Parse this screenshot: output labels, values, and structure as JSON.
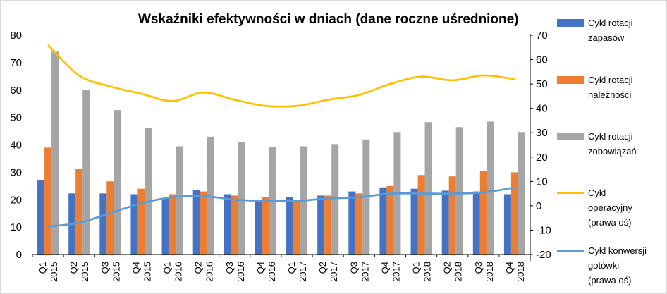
{
  "chart_data": {
    "type": "bar",
    "title": "Wskaźniki efektywności w dniach (dane roczne uśrednione)",
    "categories": [
      [
        "Q1",
        "2015"
      ],
      [
        "Q2",
        "2015"
      ],
      [
        "Q3",
        "2015"
      ],
      [
        "Q4",
        "2015"
      ],
      [
        "Q1",
        "2016"
      ],
      [
        "Q2",
        "2016"
      ],
      [
        "Q3",
        "2016"
      ],
      [
        "Q4",
        "2016"
      ],
      [
        "Q1",
        "2017"
      ],
      [
        "Q2",
        "2017"
      ],
      [
        "Q3",
        "2017"
      ],
      [
        "Q4",
        "2017"
      ],
      [
        "Q1",
        "2018"
      ],
      [
        "Q2",
        "2018"
      ],
      [
        "Q3",
        "2018"
      ],
      [
        "Q4",
        "2018"
      ]
    ],
    "ylim_left": [
      0,
      80
    ],
    "yticks_left": [
      "0",
      "10",
      "20",
      "30",
      "40",
      "50",
      "60",
      "70",
      "80"
    ],
    "ylim_right": [
      -20,
      70
    ],
    "yticks_right": [
      "-20",
      "-10",
      "0",
      "10",
      "20",
      "30",
      "40",
      "50",
      "60",
      "70"
    ],
    "grid": false,
    "legend_position": "right",
    "series": [
      {
        "name": "Cykl rotacji zapasów",
        "label_lines": [
          "Cykl rotacji",
          "zapasów"
        ],
        "kind": "bar",
        "axis": "left",
        "color": "#4472c4",
        "values": [
          27,
          22.3,
          22.3,
          22,
          20.5,
          23.5,
          22,
          19.5,
          21,
          21.5,
          23,
          24.5,
          24,
          23.3,
          23,
          22
        ]
      },
      {
        "name": "Cykl rotacji należności",
        "label_lines": [
          "Cykl rotacji",
          "należności"
        ],
        "kind": "bar",
        "axis": "left",
        "color": "#ed7d31",
        "values": [
          39,
          31.2,
          26.7,
          24,
          22,
          23,
          21.5,
          21,
          20,
          21.5,
          22.3,
          25,
          29,
          28.5,
          30.5,
          30
        ]
      },
      {
        "name": "Cykl rotacji zobowiązań",
        "label_lines": [
          "Cykl rotacji",
          "zobowiązań"
        ],
        "kind": "bar",
        "axis": "left",
        "color": "#a5a5a5",
        "values": [
          74,
          60.2,
          52.7,
          46.2,
          39.5,
          43,
          41,
          39.3,
          39.5,
          40.3,
          42,
          44.7,
          48.3,
          46.5,
          48.5,
          44.7
        ]
      },
      {
        "name": "Cykl operacyjny (prawa oś)",
        "label_lines": [
          "Cykl",
          "operacyjny",
          "(prawa oś)"
        ],
        "kind": "line",
        "axis": "right",
        "color": "#ffc000",
        "values": [
          66,
          53.5,
          49,
          46,
          43,
          46.5,
          43.5,
          41,
          41,
          43.5,
          45.5,
          50,
          53,
          51.5,
          53.5,
          52
        ]
      },
      {
        "name": "Cykl konwersji gotówki (prawa oś)",
        "label_lines": [
          "Cykl konwersji",
          "gotówki",
          "(prawa oś)"
        ],
        "kind": "line",
        "axis": "right",
        "color": "#5b9bd5",
        "values": [
          -8.5,
          -7,
          -3,
          1,
          3.5,
          4,
          2.5,
          2,
          2,
          3,
          3.5,
          5,
          5,
          5,
          5.5,
          7.5
        ]
      }
    ]
  }
}
